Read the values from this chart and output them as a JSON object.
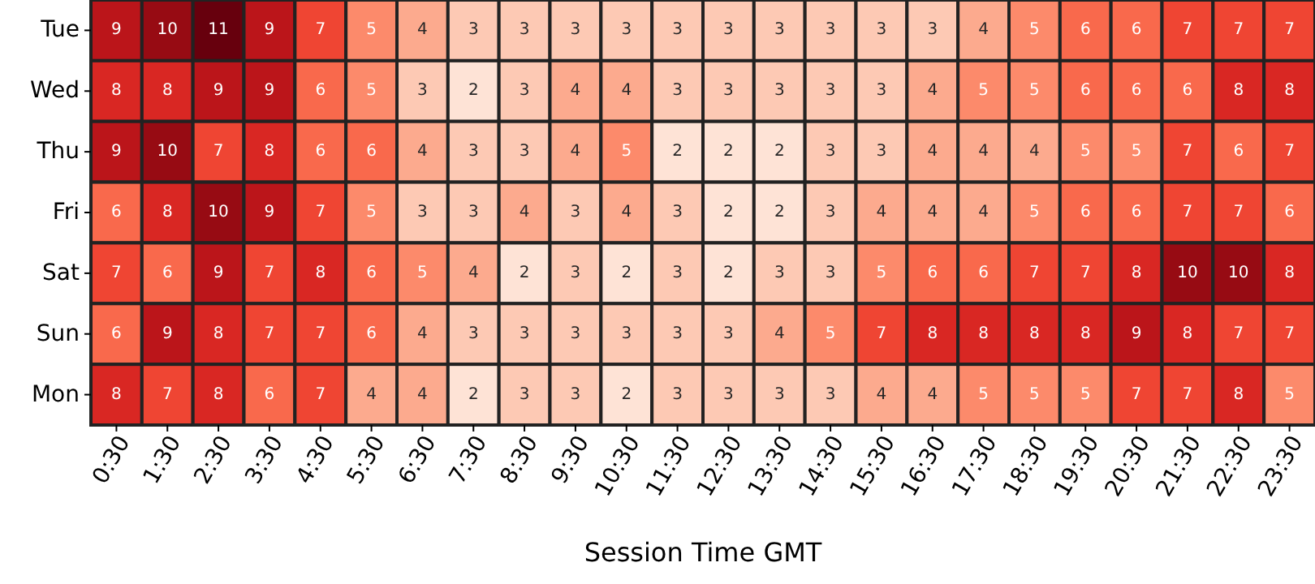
{
  "chart_data": {
    "type": "heatmap",
    "xlabel": "Session Time GMT",
    "categories": [
      "0:30",
      "1:30",
      "2:30",
      "3:30",
      "4:30",
      "5:30",
      "6:30",
      "7:30",
      "8:30",
      "9:30",
      "10:30",
      "11:30",
      "12:30",
      "13:30",
      "14:30",
      "15:30",
      "16:30",
      "17:30",
      "18:30",
      "19:30",
      "20:30",
      "21:30",
      "22:30",
      "23:30"
    ],
    "y_categories": [
      "Tue",
      "Wed",
      "Thu",
      "Fri",
      "Sat",
      "Sun",
      "Mon"
    ],
    "cells": [
      [
        9,
        10,
        11,
        9,
        7,
        5,
        4,
        3,
        3,
        3,
        3,
        3,
        3,
        3,
        3,
        3,
        3,
        4,
        5,
        6,
        6,
        7,
        7,
        7
      ],
      [
        8,
        8,
        9,
        9,
        6,
        5,
        3,
        2,
        3,
        4,
        4,
        3,
        3,
        3,
        3,
        3,
        4,
        5,
        5,
        6,
        6,
        6,
        8,
        8
      ],
      [
        9,
        10,
        7,
        8,
        6,
        6,
        4,
        3,
        3,
        4,
        5,
        2,
        2,
        2,
        3,
        3,
        4,
        4,
        4,
        5,
        5,
        7,
        6,
        7
      ],
      [
        6,
        8,
        10,
        9,
        7,
        5,
        3,
        3,
        4,
        3,
        4,
        3,
        2,
        2,
        3,
        4,
        4,
        4,
        5,
        6,
        6,
        7,
        7,
        6
      ],
      [
        7,
        6,
        9,
        7,
        8,
        6,
        5,
        4,
        2,
        3,
        2,
        3,
        2,
        3,
        3,
        5,
        6,
        6,
        7,
        7,
        8,
        10,
        10,
        8
      ],
      [
        6,
        9,
        8,
        7,
        7,
        6,
        4,
        3,
        3,
        3,
        3,
        3,
        3,
        4,
        5,
        7,
        8,
        8,
        8,
        8,
        9,
        8,
        7,
        7
      ],
      [
        8,
        7,
        8,
        6,
        7,
        4,
        4,
        2,
        3,
        3,
        2,
        3,
        3,
        3,
        3,
        4,
        4,
        5,
        5,
        5,
        7,
        7,
        8,
        5
      ]
    ],
    "data_labels": true
  }
}
